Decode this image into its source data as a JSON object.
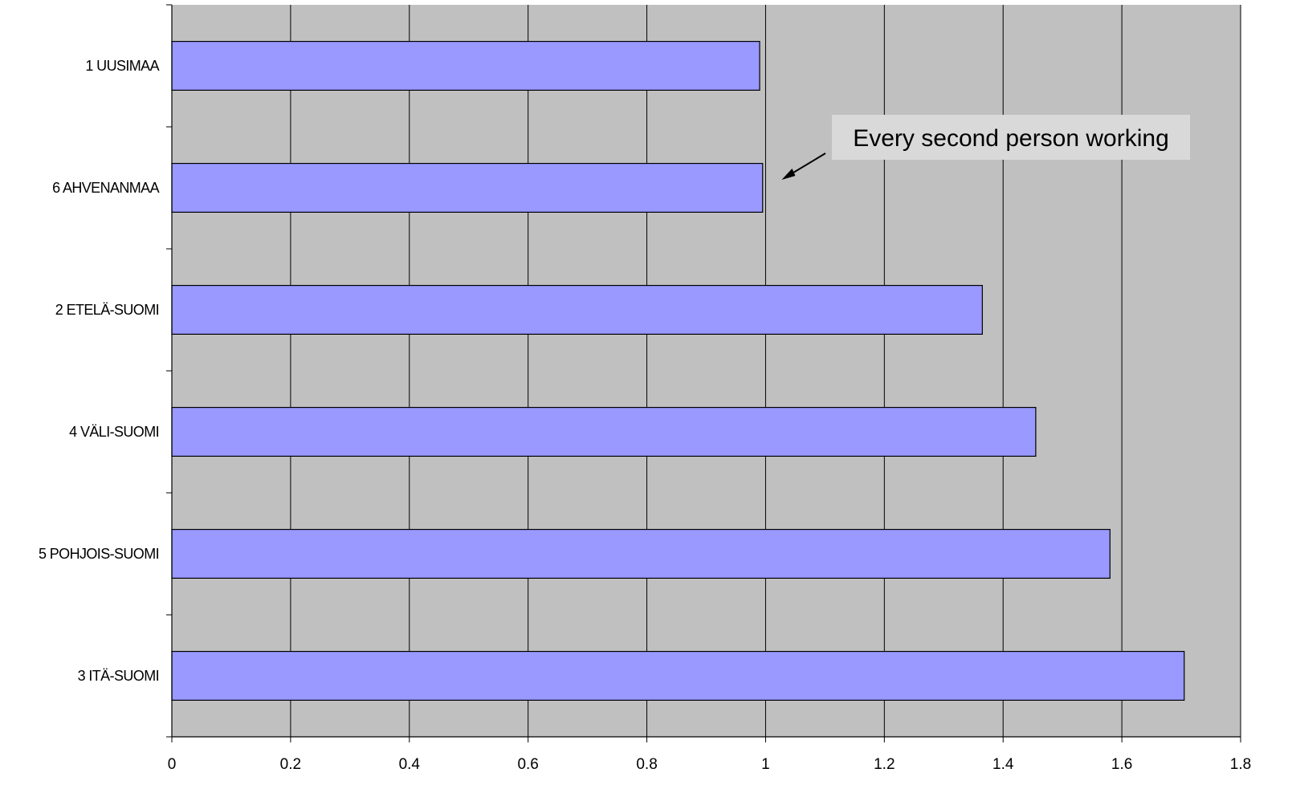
{
  "chart_data": {
    "type": "bar",
    "orientation": "horizontal",
    "categories": [
      "1 UUSIMAA",
      "6 AHVENANMAA",
      "2 ETELÄ-SUOMI",
      "4 VÄLI-SUOMI",
      "5 POHJOIS-SUOMI",
      "3 ITÄ-SUOMI"
    ],
    "values": [
      0.99,
      0.995,
      1.365,
      1.455,
      1.58,
      1.705
    ],
    "xlim": [
      0,
      1.8
    ],
    "x_ticks": [
      0,
      0.2,
      0.4,
      0.6,
      0.8,
      1,
      1.2,
      1.4,
      1.6,
      1.8
    ],
    "x_tick_labels": [
      "0",
      "0.2",
      "0.4",
      "0.6",
      "0.8",
      "1",
      "1.2",
      "1.4",
      "1.6",
      "1.8"
    ],
    "grid": true,
    "title": "",
    "xlabel": "",
    "ylabel": "",
    "colors": {
      "plot_background": "#c0c0c0",
      "bar_fill": "#9999ff",
      "bar_stroke": "#000000",
      "gridline": "#000000",
      "annotation_box": "#d9d9d9"
    },
    "annotation": {
      "text": "Every second person working",
      "points_to_value": 1.0
    }
  }
}
